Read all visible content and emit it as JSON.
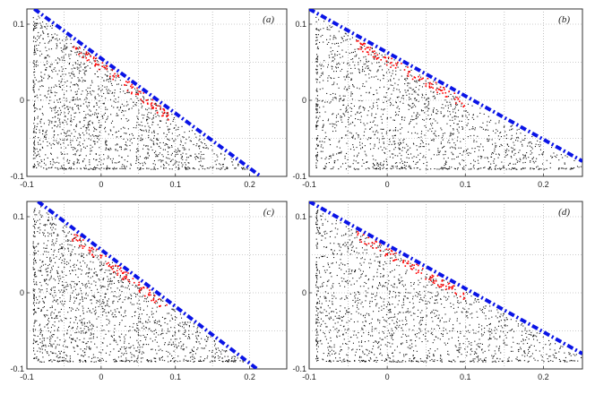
{
  "chart_data": [
    {
      "type": "scatter",
      "panel_label": "(a)",
      "xlim": [
        -0.1,
        0.25
      ],
      "ylim": [
        -0.1,
        0.12
      ],
      "xticks": [
        "-0.1",
        "0",
        "0.1",
        "0.2"
      ],
      "yticks": [
        "-0.1",
        "0",
        "0.1"
      ],
      "grid": true,
      "boundary_line": {
        "x": [
          -0.09,
          0.215
        ],
        "y": [
          0.12,
          -0.1
        ],
        "color": "#0a14e6",
        "style": "dash-dot"
      },
      "cloud_color": "#111111",
      "highlight_color": "#ff0000",
      "highlight_x_range": [
        -0.04,
        0.09
      ]
    },
    {
      "type": "scatter",
      "panel_label": "(b)",
      "xlim": [
        -0.1,
        0.25
      ],
      "ylim": [
        -0.1,
        0.12
      ],
      "xticks": [
        "-0.1",
        "0",
        "0.1",
        "0.2"
      ],
      "yticks": [
        "-0.1",
        "0",
        "0.1"
      ],
      "grid": true,
      "boundary_line": {
        "x": [
          -0.1,
          0.25
        ],
        "y": [
          0.12,
          -0.08
        ],
        "color": "#0a14e6",
        "style": "dash-dot"
      },
      "cloud_color": "#111111",
      "highlight_color": "#ff0000",
      "highlight_x_range": [
        -0.04,
        0.1
      ]
    },
    {
      "type": "scatter",
      "panel_label": "(c)",
      "xlim": [
        -0.1,
        0.25
      ],
      "ylim": [
        -0.1,
        0.12
      ],
      "xticks": [
        "-0.1",
        "0",
        "0.1",
        "0.2"
      ],
      "yticks": [
        "-0.1",
        "0",
        "0.1"
      ],
      "grid": true,
      "boundary_line": {
        "x": [
          -0.085,
          0.21
        ],
        "y": [
          0.12,
          -0.1
        ],
        "color": "#0a14e6",
        "style": "dash-dot"
      },
      "cloud_color": "#111111",
      "highlight_color": "#ff0000",
      "highlight_x_range": [
        -0.04,
        0.09
      ]
    },
    {
      "type": "scatter",
      "panel_label": "(d)",
      "xlim": [
        -0.1,
        0.25
      ],
      "ylim": [
        -0.1,
        0.12
      ],
      "xticks": [
        "-0.1",
        "0",
        "0.1",
        "0.2"
      ],
      "yticks": [
        "-0.1",
        "0",
        "0.1"
      ],
      "grid": true,
      "boundary_line": {
        "x": [
          -0.1,
          0.25
        ],
        "y": [
          0.12,
          -0.08
        ],
        "color": "#0a14e6",
        "style": "dash-dot"
      },
      "cloud_color": "#111111",
      "highlight_color": "#ff0000",
      "highlight_x_range": [
        -0.04,
        0.1
      ]
    }
  ]
}
